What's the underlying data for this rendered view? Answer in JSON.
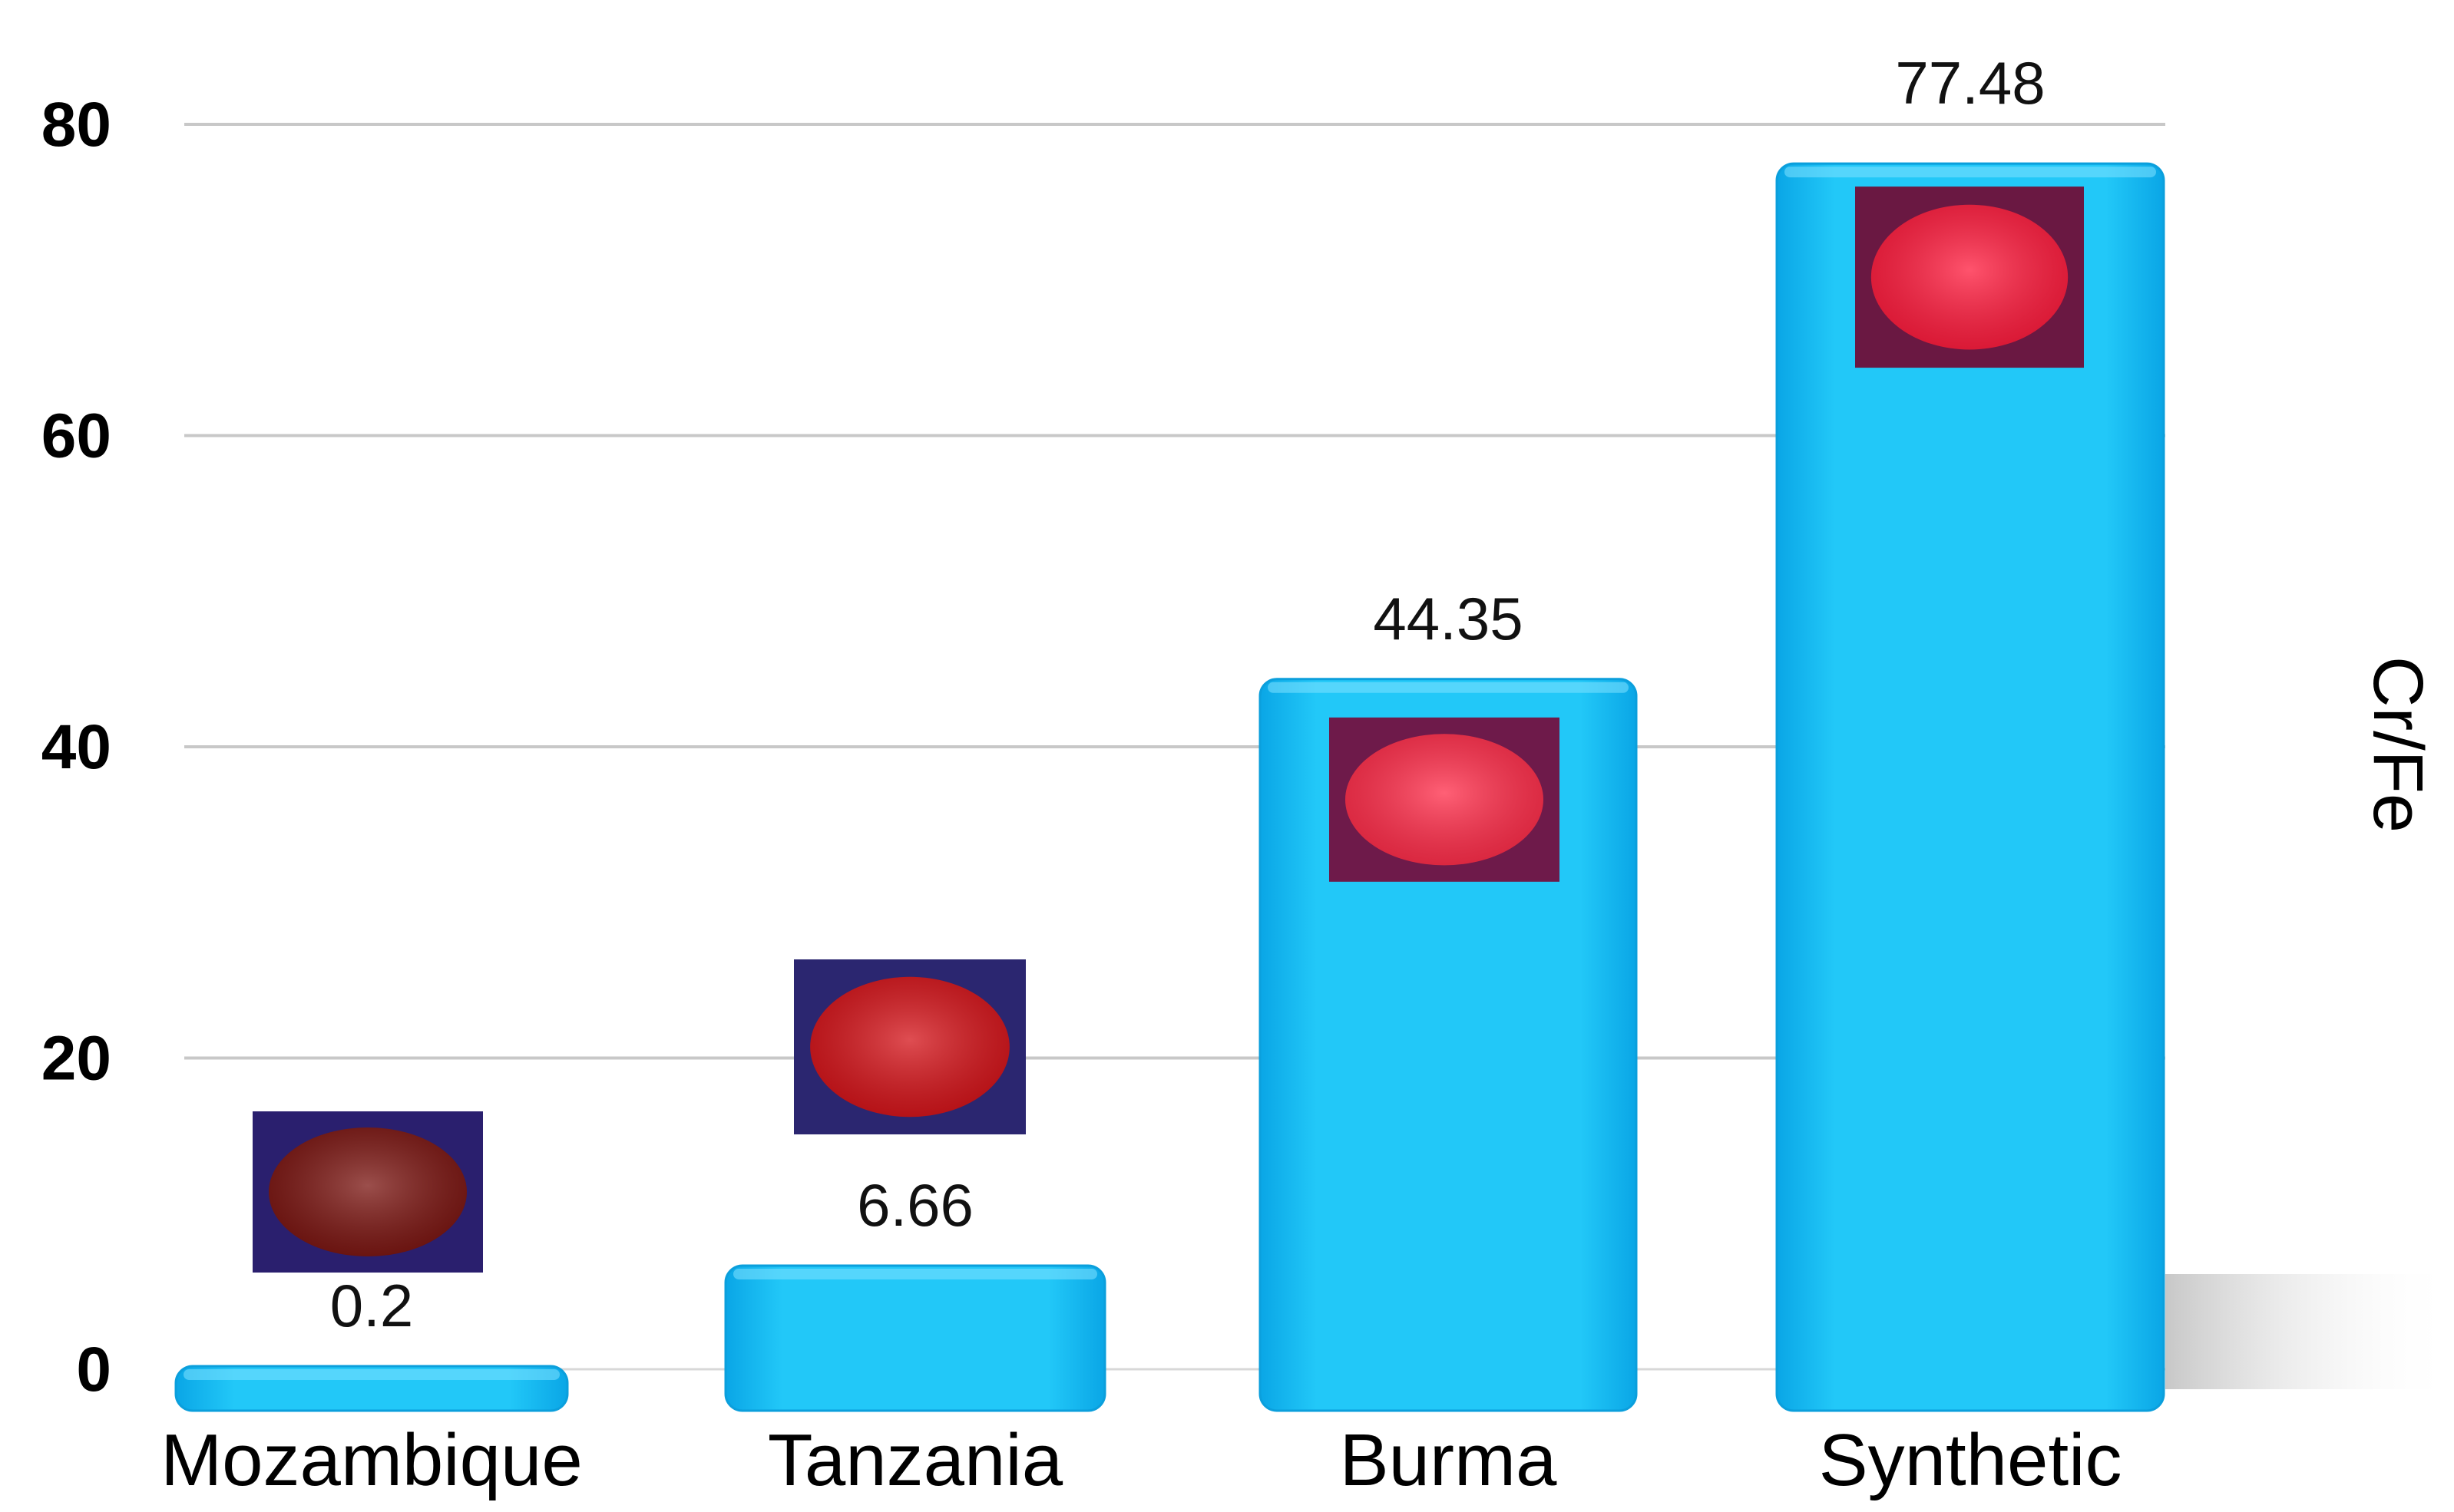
{
  "chart_data": {
    "type": "bar",
    "categories": [
      "Mozambique",
      "Tanzania",
      "Burma",
      "Synthetic"
    ],
    "values": [
      0.2,
      6.66,
      44.35,
      77.48
    ],
    "data_labels": [
      "0.2",
      "6.66",
      "44.35",
      "77.48"
    ],
    "ylabel": "Cr/Fe",
    "ylabel_position": "right",
    "ylim": [
      0,
      80
    ],
    "yticks": [
      0,
      20,
      40,
      60,
      80
    ],
    "ytick_labels": [
      "0",
      "20",
      "40",
      "60",
      "80"
    ],
    "grid": true,
    "bar_color": "#1ec4f5",
    "gem_tints": [
      "#7a1410",
      "#d41218",
      "#ff2b48",
      "#ff1a3c"
    ],
    "gem_backgrounds": [
      "#2a1f6e",
      "#2b2670",
      "#6e1a4a",
      "#6a1842"
    ]
  }
}
